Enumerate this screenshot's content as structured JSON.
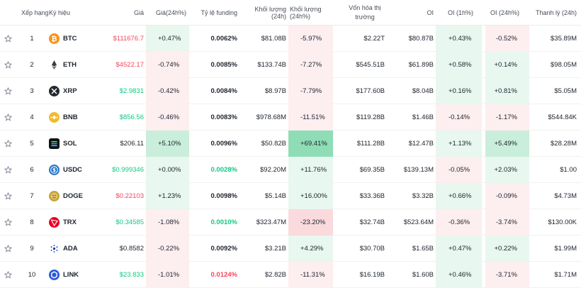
{
  "colors": {
    "up": "#0ecb81",
    "down": "#f6465d",
    "up_bg_light": "#e8f7ef",
    "up_bg_mid": "#c9eedb",
    "up_bg_strong": "#8fddb6",
    "down_bg_light": "#fdeef0",
    "down_bg_mid": "#fadadd",
    "down_bg_strong": "#f6b9c0"
  },
  "headers": {
    "rank": "Xếp hạng",
    "symbol": "Ký hiệu",
    "price": "Giá",
    "price_change": "Giá(24h%)",
    "funding": "Tỷ lệ funding",
    "volume": "Khối lượng (24h)",
    "volume_change": "Khối lượng (24h%)",
    "market_cap_line1": "Vốn hóa thị",
    "market_cap_line2": "trường",
    "oi": "OI",
    "oi_1h": "OI (1h%)",
    "oi_24h": "OI (24h%)",
    "liquidation": "Thanh lý (24h)"
  },
  "rows": [
    {
      "rank": "1",
      "symbol": "BTC",
      "icon": "btc-icon",
      "price": "$111676.7",
      "price_dir": "down",
      "price_change": "+0.47%",
      "pc_bg": "up_bg_light",
      "funding": "0.0062%",
      "funding_dir": "neutral",
      "volume": "$81.08B",
      "volume_change": "-5.97%",
      "vc_bg": "down_bg_light",
      "market_cap": "$2.22T",
      "oi": "$80.87B",
      "oi_1h": "+0.43%",
      "oi1_bg": "up_bg_light",
      "oi_24h": "-0.52%",
      "oi24_bg": "down_bg_light",
      "liquidation": "$35.89M"
    },
    {
      "rank": "2",
      "symbol": "ETH",
      "icon": "eth-icon",
      "price": "$4522.17",
      "price_dir": "down",
      "price_change": "-0.74%",
      "pc_bg": "down_bg_light",
      "funding": "0.0085%",
      "funding_dir": "neutral",
      "volume": "$133.74B",
      "volume_change": "-7.27%",
      "vc_bg": "down_bg_light",
      "market_cap": "$545.51B",
      "oi": "$61.89B",
      "oi_1h": "+0.58%",
      "oi1_bg": "up_bg_light",
      "oi_24h": "+0.14%",
      "oi24_bg": "up_bg_light",
      "liquidation": "$98.05M"
    },
    {
      "rank": "3",
      "symbol": "XRP",
      "icon": "xrp-icon",
      "price": "$2.9831",
      "price_dir": "up",
      "price_change": "-0.42%",
      "pc_bg": "down_bg_light",
      "funding": "0.0084%",
      "funding_dir": "neutral",
      "volume": "$8.97B",
      "volume_change": "-7.79%",
      "vc_bg": "down_bg_light",
      "market_cap": "$177.60B",
      "oi": "$8.04B",
      "oi_1h": "+0.16%",
      "oi1_bg": "up_bg_light",
      "oi_24h": "+0.81%",
      "oi24_bg": "up_bg_light",
      "liquidation": "$5.05M"
    },
    {
      "rank": "4",
      "symbol": "BNB",
      "icon": "bnb-icon",
      "price": "$856.56",
      "price_dir": "up",
      "price_change": "-0.46%",
      "pc_bg": "down_bg_light",
      "funding": "0.0083%",
      "funding_dir": "neutral",
      "volume": "$978.68M",
      "volume_change": "-11.51%",
      "vc_bg": "down_bg_light",
      "market_cap": "$119.28B",
      "oi": "$1.46B",
      "oi_1h": "-0.14%",
      "oi1_bg": "down_bg_light",
      "oi_24h": "-1.17%",
      "oi24_bg": "down_bg_light",
      "liquidation": "$544.84K"
    },
    {
      "rank": "5",
      "symbol": "SOL",
      "icon": "sol-icon",
      "price": "$206.11",
      "price_dir": "neutral",
      "price_change": "+5.10%",
      "pc_bg": "up_bg_mid",
      "funding": "0.0096%",
      "funding_dir": "neutral",
      "volume": "$50.82B",
      "volume_change": "+69.41%",
      "vc_bg": "up_bg_strong",
      "market_cap": "$111.28B",
      "oi": "$12.47B",
      "oi_1h": "+1.13%",
      "oi1_bg": "up_bg_light",
      "oi_24h": "+5.49%",
      "oi24_bg": "up_bg_mid",
      "liquidation": "$28.28M"
    },
    {
      "rank": "6",
      "symbol": "USDC",
      "icon": "usdc-icon",
      "price": "$0.999346",
      "price_dir": "up",
      "price_change": "+0.00%",
      "pc_bg": "up_bg_light",
      "funding": "0.0028%",
      "funding_dir": "up",
      "volume": "$92.20M",
      "volume_change": "+11.76%",
      "vc_bg": "up_bg_light",
      "market_cap": "$69.35B",
      "oi": "$139.13M",
      "oi_1h": "-0.05%",
      "oi1_bg": "down_bg_light",
      "oi_24h": "+2.03%",
      "oi24_bg": "up_bg_light",
      "liquidation": "$1.00"
    },
    {
      "rank": "7",
      "symbol": "DOGE",
      "icon": "doge-icon",
      "price": "$0.22103",
      "price_dir": "down",
      "price_change": "+1.23%",
      "pc_bg": "up_bg_light",
      "funding": "0.0098%",
      "funding_dir": "neutral",
      "volume": "$5.14B",
      "volume_change": "+16.00%",
      "vc_bg": "up_bg_light",
      "market_cap": "$33.36B",
      "oi": "$3.32B",
      "oi_1h": "+0.66%",
      "oi1_bg": "up_bg_light",
      "oi_24h": "-0.09%",
      "oi24_bg": "down_bg_light",
      "liquidation": "$4.73M"
    },
    {
      "rank": "8",
      "symbol": "TRX",
      "icon": "trx-icon",
      "price": "$0.34585",
      "price_dir": "up",
      "price_change": "-1.08%",
      "pc_bg": "down_bg_light",
      "funding": "0.0010%",
      "funding_dir": "up",
      "volume": "$323.47M",
      "volume_change": "-23.20%",
      "vc_bg": "down_bg_mid",
      "market_cap": "$32.74B",
      "oi": "$523.64M",
      "oi_1h": "-0.36%",
      "oi1_bg": "down_bg_light",
      "oi_24h": "-3.74%",
      "oi24_bg": "down_bg_light",
      "liquidation": "$130.00K"
    },
    {
      "rank": "9",
      "symbol": "ADA",
      "icon": "ada-icon",
      "price": "$0.8582",
      "price_dir": "neutral",
      "price_change": "-0.22%",
      "pc_bg": "down_bg_light",
      "funding": "0.0092%",
      "funding_dir": "neutral",
      "volume": "$3.21B",
      "volume_change": "+4.29%",
      "vc_bg": "up_bg_light",
      "market_cap": "$30.70B",
      "oi": "$1.65B",
      "oi_1h": "+0.47%",
      "oi1_bg": "up_bg_light",
      "oi_24h": "+0.22%",
      "oi24_bg": "up_bg_light",
      "liquidation": "$1.99M"
    },
    {
      "rank": "10",
      "symbol": "LINK",
      "icon": "link-icon",
      "price": "$23.833",
      "price_dir": "up",
      "price_change": "-1.01%",
      "pc_bg": "down_bg_light",
      "funding": "0.0124%",
      "funding_dir": "down",
      "volume": "$2.82B",
      "volume_change": "-11.31%",
      "vc_bg": "down_bg_light",
      "market_cap": "$16.19B",
      "oi": "$1.60B",
      "oi_1h": "+0.46%",
      "oi1_bg": "up_bg_light",
      "oi_24h": "-3.71%",
      "oi24_bg": "down_bg_light",
      "liquidation": "$1.71M"
    }
  ]
}
